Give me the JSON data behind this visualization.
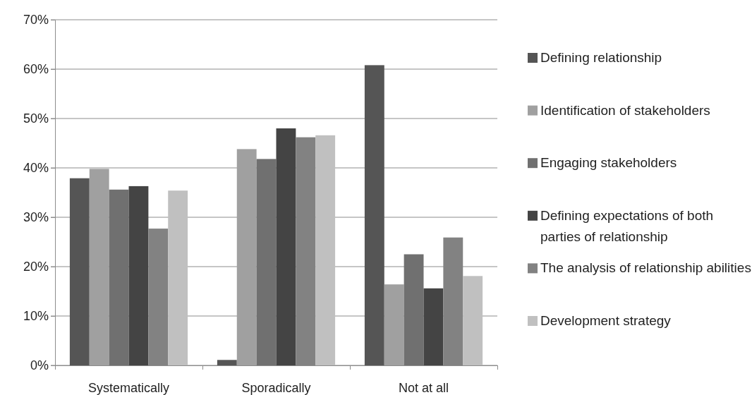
{
  "chart_data": {
    "type": "bar",
    "categories": [
      "Systematically",
      "Sporadically",
      "Not at all"
    ],
    "series": [
      {
        "name": "Defining relationship",
        "color": "#555555",
        "values": [
          37.9,
          1.1,
          60.8
        ]
      },
      {
        "name": "Identification of stakeholders",
        "color": "#a0a0a0",
        "values": [
          39.8,
          43.8,
          16.4
        ]
      },
      {
        "name": "Engaging stakeholders",
        "color": "#707070",
        "values": [
          35.6,
          41.8,
          22.5
        ]
      },
      {
        "name": "Defining expectations of both parties of relationship",
        "color": "#444444",
        "values": [
          36.3,
          48.0,
          15.6
        ]
      },
      {
        "name": "The analysis of relationship abilities",
        "color": "#828282",
        "values": [
          27.7,
          46.2,
          25.9
        ]
      },
      {
        "name": "Development strategy",
        "color": "#c0c0c0",
        "values": [
          35.4,
          46.6,
          18.1
        ]
      }
    ],
    "ylim": [
      0,
      70
    ],
    "yticks": [
      {
        "value": 0,
        "label": "0%"
      },
      {
        "value": 10,
        "label": "10%"
      },
      {
        "value": 20,
        "label": "20%"
      },
      {
        "value": 30,
        "label": "30%"
      },
      {
        "value": 40,
        "label": "40%"
      },
      {
        "value": 50,
        "label": "50%"
      },
      {
        "value": 60,
        "label": "60%"
      },
      {
        "value": 70,
        "label": "70%"
      }
    ],
    "grid": "y",
    "legend": "right"
  }
}
